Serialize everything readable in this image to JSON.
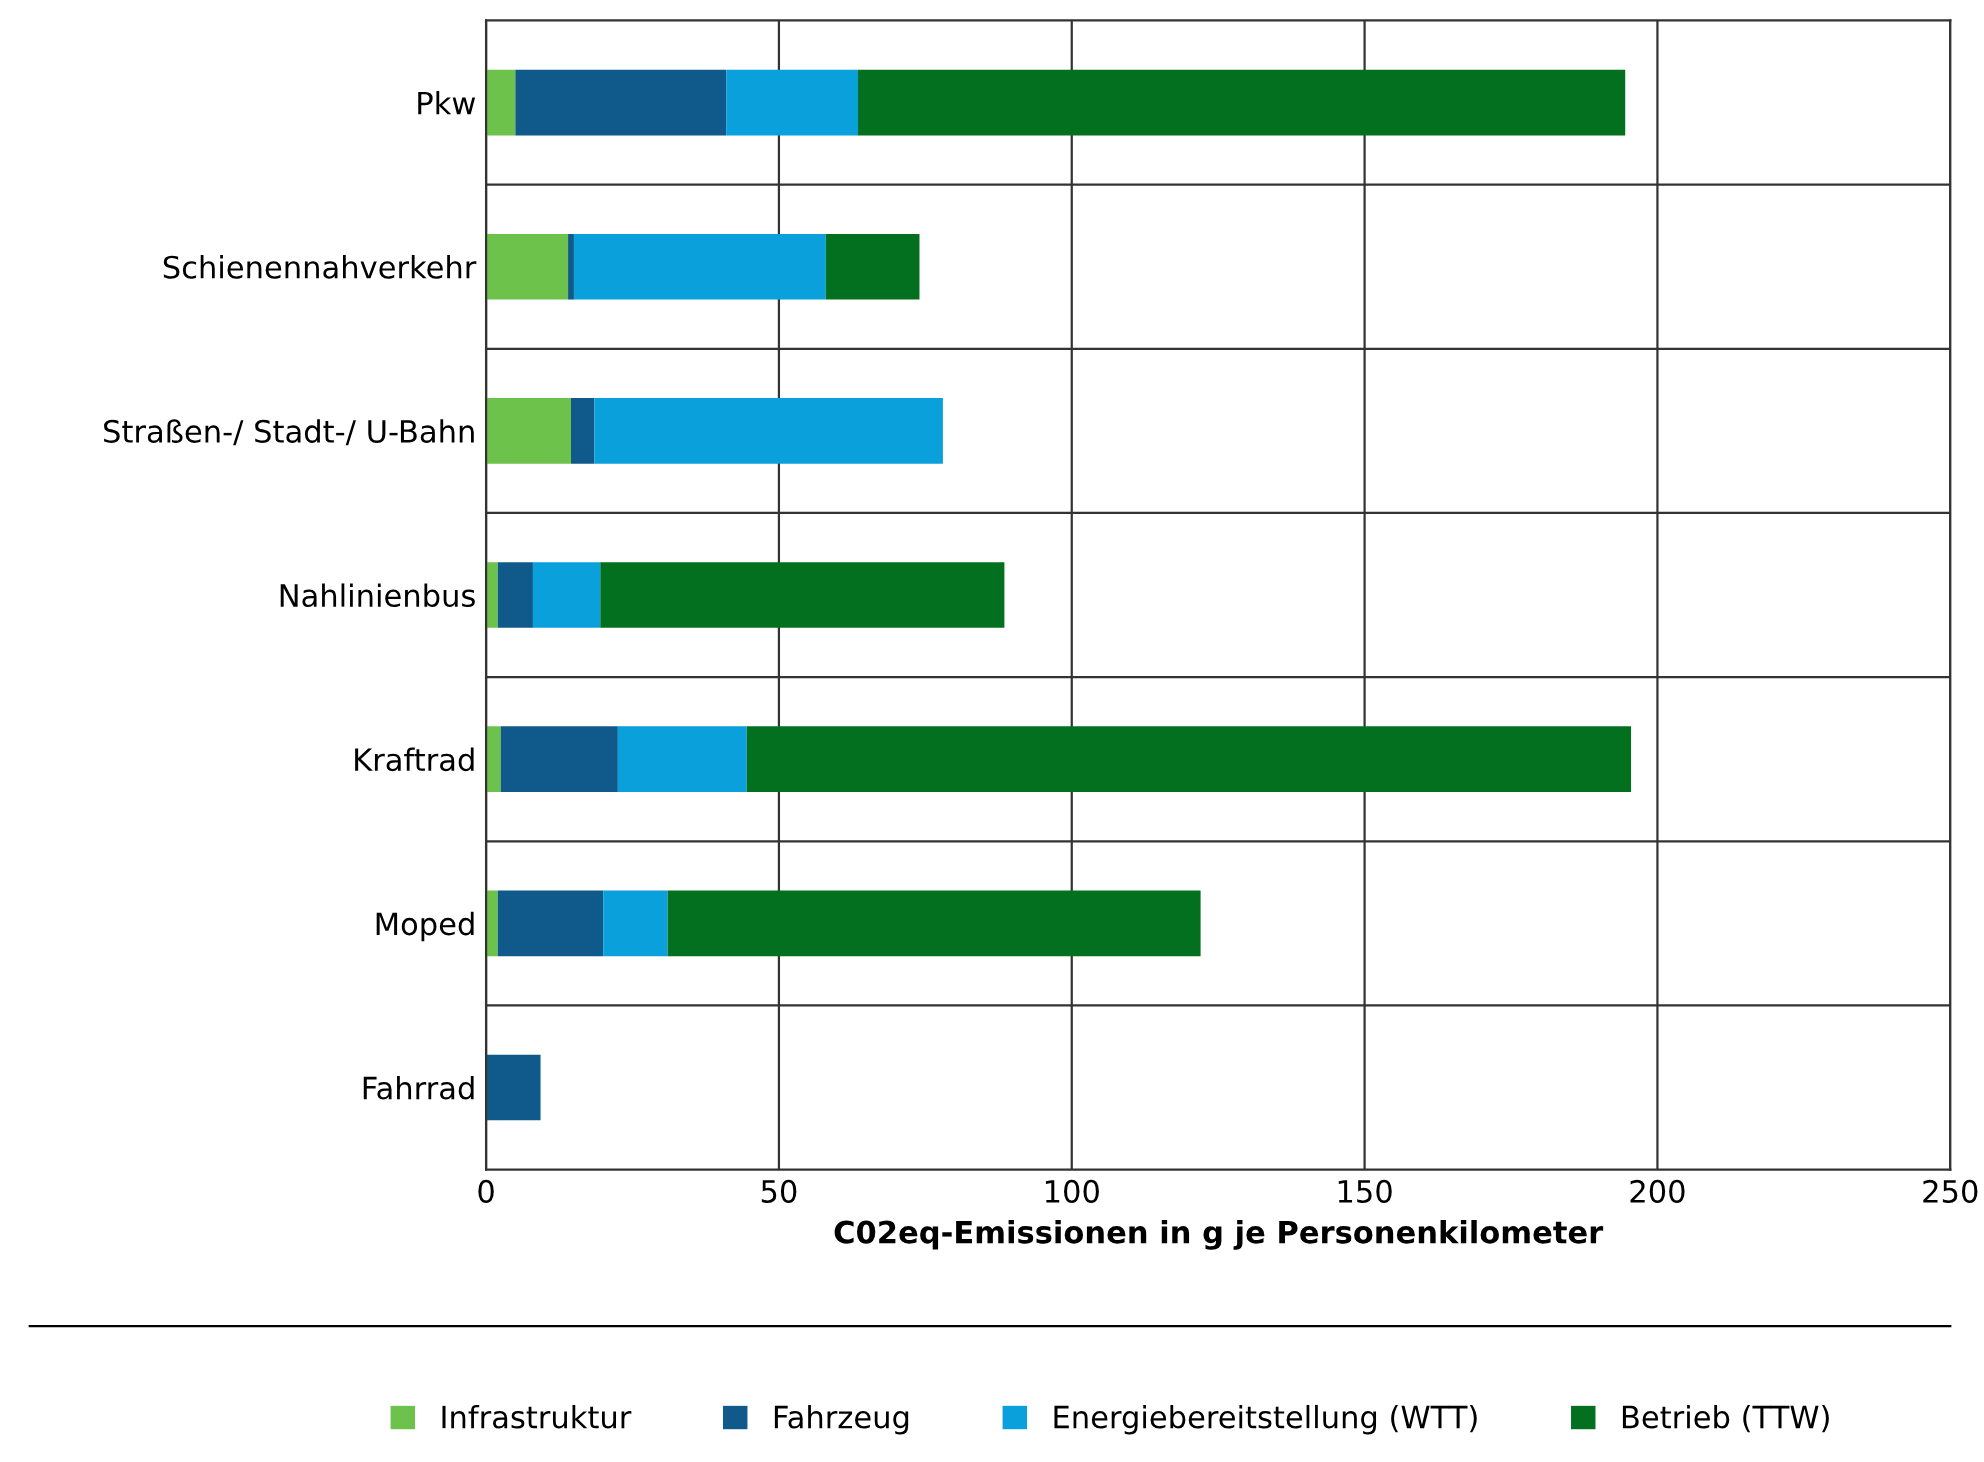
{
  "chart_data": {
    "type": "bar",
    "orientation": "horizontal",
    "stacked": true,
    "categories": [
      "Pkw",
      "Schienennahverkehr",
      "Straßen-/ Stadt-/ U-Bahn",
      "Nahlinienbus",
      "Kraftrad",
      "Moped",
      "Fahrrad"
    ],
    "series": [
      {
        "name": "Infrastruktur",
        "color": "#6cc24a",
        "values": [
          5,
          14,
          14.5,
          2,
          2.5,
          2,
          0
        ]
      },
      {
        "name": "Fahrzeug",
        "color": "#0f5a8a",
        "values": [
          36,
          1,
          4,
          6,
          20,
          18,
          9.3
        ]
      },
      {
        "name": "Energiebereitstellung (WTT)",
        "color": "#0aa0dc",
        "values": [
          22.5,
          43,
          59.5,
          11.5,
          22,
          11,
          0
        ]
      },
      {
        "name": "Betrieb (TTW)",
        "color": "#03701f",
        "values": [
          131,
          16,
          0,
          69,
          151,
          91,
          0
        ]
      }
    ],
    "xlabel": "C02eq-Emissionen in g je Personenkilometer",
    "xlim": [
      0,
      250
    ],
    "xticks": [
      0,
      50,
      100,
      150,
      200,
      250
    ],
    "grid": true,
    "legend": "bottom"
  }
}
